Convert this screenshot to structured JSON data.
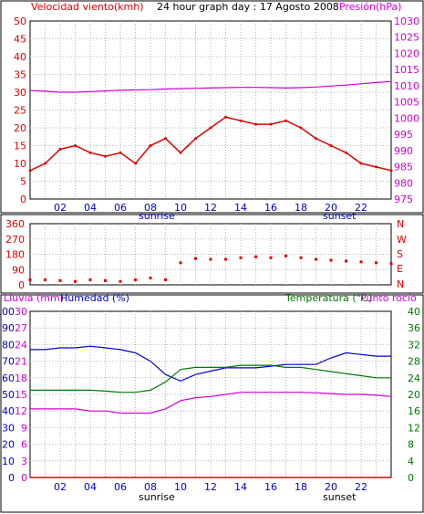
{
  "colors": {
    "red": "#e00000",
    "blue": "#0000c8",
    "green": "#007800",
    "magenta": "#d000d0",
    "grid": "#b4b4b4",
    "frame": "#000000"
  },
  "top": {
    "title": "24 hour graph day : 17 Agosto 2008",
    "left_label": "Velocidad viento(kmh)",
    "right_label": "Presión(hPa)"
  },
  "mid": {
    "right_letters": [
      "N",
      "W",
      "S",
      "E",
      "N"
    ]
  },
  "bottom": {
    "left_label_1": "Lluvia (mm)",
    "left_label_2": "Humedad (%)",
    "right_label_1": "Temperatura (°C)",
    "right_label_2": "Punto rocío"
  },
  "x_labels": [
    "02",
    "04",
    "06",
    "08",
    "10",
    "12",
    "14",
    "16",
    "18",
    "20",
    "22"
  ],
  "sunrise_label": "sunrise",
  "sunset_label": "sunset",
  "chart_data": [
    {
      "type": "line",
      "title": "24 hour graph day : 17 Agosto 2008",
      "x": [
        0,
        1,
        2,
        3,
        4,
        5,
        6,
        7,
        8,
        9,
        10,
        11,
        12,
        13,
        14,
        15,
        16,
        17,
        18,
        19,
        20,
        21,
        22,
        23,
        24
      ],
      "y_left_ticks": [
        0,
        5,
        10,
        15,
        20,
        25,
        30,
        35,
        40,
        45,
        50
      ],
      "y_right_ticks": [
        975,
        980,
        985,
        990,
        995,
        1000,
        1005,
        1010,
        1015,
        1020,
        1025,
        1030
      ],
      "ylim_left": [
        0,
        50
      ],
      "ylim_right": [
        975,
        1030
      ],
      "series": [
        {
          "name": "Velocidad viento(kmh)",
          "values": [
            8,
            10,
            14,
            15,
            13,
            12,
            13,
            10,
            15,
            17,
            13,
            17,
            20,
            23,
            22,
            21,
            21,
            22,
            20,
            17,
            15,
            13,
            10,
            9,
            8
          ]
        },
        {
          "name": "Presión(hPa)",
          "values": [
            1008.5,
            1008.3,
            1008,
            1008,
            1008.2,
            1008.4,
            1008.6,
            1008.7,
            1008.8,
            1009,
            1009.1,
            1009.2,
            1009.3,
            1009.4,
            1009.5,
            1009.5,
            1009.4,
            1009.3,
            1009.4,
            1009.6,
            1009.9,
            1010.2,
            1010.6,
            1011,
            1011.3
          ]
        }
      ]
    },
    {
      "type": "scatter",
      "y_ticks": [
        0,
        90,
        180,
        270,
        360
      ],
      "ylim": [
        0,
        360
      ],
      "series": [
        {
          "name": "wind direction",
          "values": [
            30,
            30,
            25,
            20,
            30,
            25,
            20,
            30,
            40,
            30,
            130,
            155,
            150,
            150,
            160,
            165,
            160,
            170,
            160,
            150,
            145,
            140,
            135,
            130,
            125
          ]
        }
      ]
    },
    {
      "type": "line",
      "y_ticks_rain": [
        0,
        3,
        6,
        9,
        12,
        15,
        18,
        21,
        24,
        27,
        30
      ],
      "y_ticks_humidity": [
        0,
        10,
        20,
        30,
        40,
        50,
        60,
        70,
        80,
        90,
        100
      ],
      "y_ticks_temperature": [
        0,
        4,
        8,
        12,
        16,
        20,
        24,
        28,
        32,
        36,
        40
      ],
      "ylim_rain": [
        0,
        30
      ],
      "ylim_humidity": [
        0,
        100
      ],
      "ylim_temperature": [
        0,
        40
      ],
      "series": [
        {
          "name": "Lluvia (mm)",
          "values": [
            0,
            0,
            0,
            0,
            0,
            0,
            0,
            0,
            0,
            0,
            0,
            0,
            0,
            0,
            0,
            0,
            0,
            0,
            0,
            0,
            0,
            0,
            0,
            0,
            0
          ]
        },
        {
          "name": "Humedad (%)",
          "values": [
            77,
            77,
            78,
            78,
            79,
            78,
            77,
            75,
            70,
            62,
            58,
            62,
            64,
            66,
            66,
            66,
            67,
            68,
            68,
            68,
            72,
            75,
            74,
            73,
            73
          ]
        },
        {
          "name": "Temperatura (°C)",
          "values": [
            21,
            21,
            21,
            21,
            21,
            20.8,
            20.5,
            20.5,
            21,
            23,
            26,
            26.5,
            26.5,
            26.5,
            27,
            27,
            27,
            26.5,
            26.5,
            26,
            25.5,
            25,
            24.5,
            24,
            24
          ]
        },
        {
          "name": "Punto rocío",
          "values": [
            16.5,
            16.5,
            16.5,
            16.5,
            16,
            16,
            15.5,
            15.5,
            15.5,
            16.5,
            18.5,
            19.2,
            19.5,
            20,
            20.5,
            20.5,
            20.5,
            20.5,
            20.5,
            20.4,
            20.2,
            20,
            20,
            19.8,
            19.5
          ]
        }
      ]
    }
  ]
}
